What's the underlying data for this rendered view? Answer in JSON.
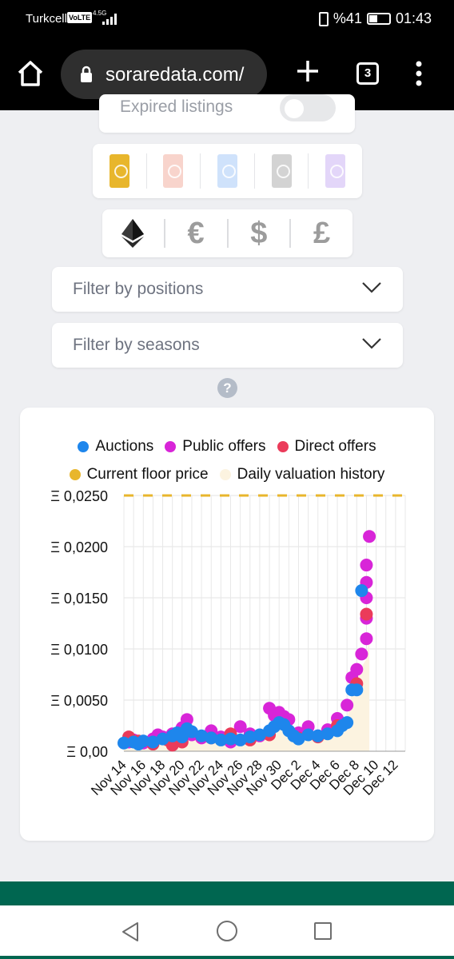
{
  "status_bar": {
    "carrier": "Turkcell",
    "volte": "VoLTE",
    "network": "4.5G",
    "battery": "%41",
    "time": "01:43"
  },
  "browser": {
    "url": "soraredata.com/",
    "tab_count": "3"
  },
  "filters": {
    "expired_listings_label": "Expired listings",
    "expired_listings_on": false,
    "rarities": [
      {
        "name": "limited",
        "color": "#e8b62c"
      },
      {
        "name": "rare",
        "color": "#f8d4cc"
      },
      {
        "name": "super-rare",
        "color": "#cfe2fb"
      },
      {
        "name": "unique",
        "color": "#d3d3d3"
      },
      {
        "name": "custom",
        "color": "#e3d6f9"
      }
    ],
    "currencies": [
      "ETH",
      "€",
      "$",
      "£"
    ],
    "positions_label": "Filter by positions",
    "seasons_label": "Filter by seasons"
  },
  "help_label": "?",
  "chart": {
    "legend": [
      {
        "label": "Auctions",
        "color": "#1e86ec"
      },
      {
        "label": "Public offers",
        "color": "#d825d8"
      },
      {
        "label": "Direct offers",
        "color": "#eb3b5a"
      },
      {
        "label": "Current floor price",
        "color": "#e8b62c"
      },
      {
        "label": "Daily valuation history",
        "color": "#fcf3e0"
      }
    ]
  },
  "chart_data": {
    "type": "scatter",
    "ylim": [
      0,
      0.025
    ],
    "y_ticks": [
      "Ξ 0,00",
      "Ξ 0,0050",
      "Ξ 0,0100",
      "Ξ 0,0150",
      "Ξ 0,0200",
      "Ξ 0,0250"
    ],
    "y_tick_values": [
      0,
      0.005,
      0.01,
      0.015,
      0.02,
      0.025
    ],
    "x_range": [
      0,
      29
    ],
    "x_ticks": [
      "Nov 14",
      "Nov 16",
      "Nov 18",
      "Nov 20",
      "Nov 22",
      "Nov 24",
      "Nov 26",
      "Nov 28",
      "Nov 30",
      "Dec 2",
      "Dec 4",
      "Dec 6",
      "Dec 8",
      "Dec 10",
      "Dec 12"
    ],
    "floor_price": 0.025,
    "series": [
      {
        "name": "Auctions",
        "points": [
          [
            0,
            0.0008
          ],
          [
            1,
            0.0009
          ],
          [
            1.5,
            0.0007
          ],
          [
            2,
            0.001
          ],
          [
            3,
            0.0009
          ],
          [
            4,
            0.0012
          ],
          [
            5,
            0.0015
          ],
          [
            5.5,
            0.0018
          ],
          [
            6,
            0.0014
          ],
          [
            6.5,
            0.0022
          ],
          [
            7,
            0.0019
          ],
          [
            8,
            0.0015
          ],
          [
            9,
            0.0013
          ],
          [
            10,
            0.0011
          ],
          [
            11,
            0.0012
          ],
          [
            12,
            0.0011
          ],
          [
            13,
            0.0014
          ],
          [
            14,
            0.0016
          ],
          [
            15,
            0.002
          ],
          [
            15.5,
            0.0024
          ],
          [
            16,
            0.0028
          ],
          [
            16.5,
            0.0026
          ],
          [
            17,
            0.002
          ],
          [
            17.5,
            0.0015
          ],
          [
            18,
            0.0012
          ],
          [
            19,
            0.0016
          ],
          [
            20,
            0.0015
          ],
          [
            21,
            0.0017
          ],
          [
            22,
            0.002
          ],
          [
            22.5,
            0.0025
          ],
          [
            23,
            0.0028
          ],
          [
            23.5,
            0.006
          ],
          [
            24,
            0.006
          ],
          [
            24.5,
            0.0157
          ]
        ]
      },
      {
        "name": "Public offers",
        "points": [
          [
            0.5,
            0.0009
          ],
          [
            1,
            0.0011
          ],
          [
            2,
            0.0008
          ],
          [
            3,
            0.0012
          ],
          [
            3.5,
            0.0016
          ],
          [
            4,
            0.0014
          ],
          [
            5,
            0.0017
          ],
          [
            6,
            0.0023
          ],
          [
            6.5,
            0.0031
          ],
          [
            7,
            0.0016
          ],
          [
            8,
            0.0013
          ],
          [
            9,
            0.002
          ],
          [
            10,
            0.0014
          ],
          [
            11,
            0.0009
          ],
          [
            12,
            0.0024
          ],
          [
            13,
            0.0017
          ],
          [
            14,
            0.0015
          ],
          [
            15,
            0.0042
          ],
          [
            15.5,
            0.0035
          ],
          [
            16,
            0.0038
          ],
          [
            16.5,
            0.0034
          ],
          [
            17,
            0.0031
          ],
          [
            18,
            0.0018
          ],
          [
            19,
            0.0024
          ],
          [
            20,
            0.0015
          ],
          [
            21,
            0.0021
          ],
          [
            22,
            0.0032
          ],
          [
            23,
            0.0045
          ],
          [
            23.5,
            0.0072
          ],
          [
            24,
            0.008
          ],
          [
            24.5,
            0.0095
          ],
          [
            25,
            0.011
          ],
          [
            25,
            0.013
          ],
          [
            25,
            0.015
          ],
          [
            25,
            0.0165
          ],
          [
            25,
            0.0182
          ],
          [
            25.3,
            0.021
          ]
        ]
      },
      {
        "name": "Direct offers",
        "points": [
          [
            0.5,
            0.0014
          ],
          [
            1.5,
            0.001
          ],
          [
            3,
            0.0007
          ],
          [
            4.5,
            0.0011
          ],
          [
            5,
            0.0006
          ],
          [
            6,
            0.0009
          ],
          [
            9,
            0.0013
          ],
          [
            11,
            0.0017
          ],
          [
            13,
            0.0011
          ],
          [
            15,
            0.0016
          ],
          [
            18,
            0.0013
          ],
          [
            20,
            0.0014
          ],
          [
            22,
            0.0025
          ],
          [
            24,
            0.0066
          ],
          [
            25,
            0.0134
          ]
        ]
      },
      {
        "name": "Daily valuation history",
        "points": [
          [
            0,
            0.0009
          ],
          [
            3,
            0.0011
          ],
          [
            6,
            0.0017
          ],
          [
            9,
            0.0013
          ],
          [
            12,
            0.0014
          ],
          [
            15,
            0.0022
          ],
          [
            16,
            0.0028
          ],
          [
            18,
            0.0016
          ],
          [
            20,
            0.0017
          ],
          [
            22,
            0.0024
          ],
          [
            23,
            0.003
          ],
          [
            23.5,
            0.006
          ],
          [
            24,
            0.0075
          ],
          [
            25,
            0.009
          ],
          [
            25.3,
            0.011
          ]
        ]
      }
    ]
  }
}
